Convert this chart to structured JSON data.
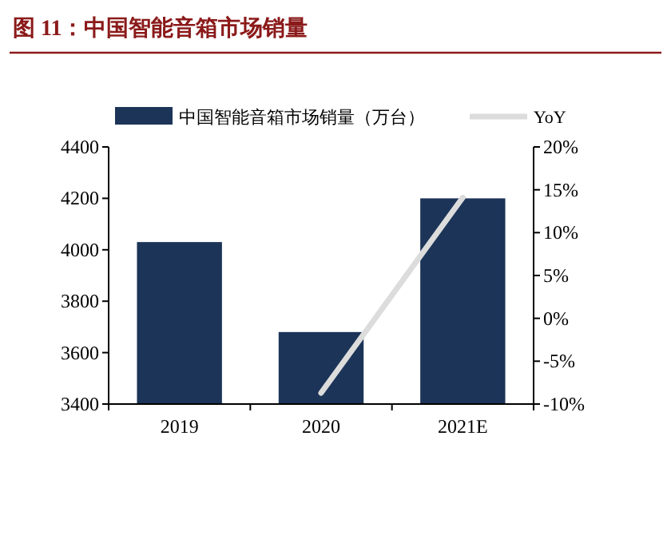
{
  "chart_data": {
    "type": "bar",
    "title": "图 11：中国智能音箱市场销量",
    "categories": [
      "2019",
      "2020",
      "2021E"
    ],
    "series": [
      {
        "name": "中国智能音箱市场销量（万台）",
        "color": "#1c3458",
        "values": [
          4030,
          3680,
          4200
        ]
      },
      {
        "name": "YoY",
        "type": "line",
        "axis": "y2",
        "color": "#dcdcdc",
        "values": [
          null,
          -8.7,
          14.1
        ]
      }
    ],
    "ylim": [
      3400,
      4400
    ],
    "yticks": [
      3400,
      3600,
      3800,
      4000,
      4200,
      4400
    ],
    "y2lim": [
      -10,
      20
    ],
    "y2ticks": [
      {
        "value": -10,
        "label": "-10%"
      },
      {
        "value": -5,
        "label": "-5%"
      },
      {
        "value": 0,
        "label": "0%"
      },
      {
        "value": 5,
        "label": "5%"
      },
      {
        "value": 10,
        "label": "10%"
      },
      {
        "value": 15,
        "label": "15%"
      },
      {
        "value": 20,
        "label": "20%"
      }
    ],
    "grid": false,
    "legend": "top",
    "marker": "none",
    "line_style": "solid"
  }
}
